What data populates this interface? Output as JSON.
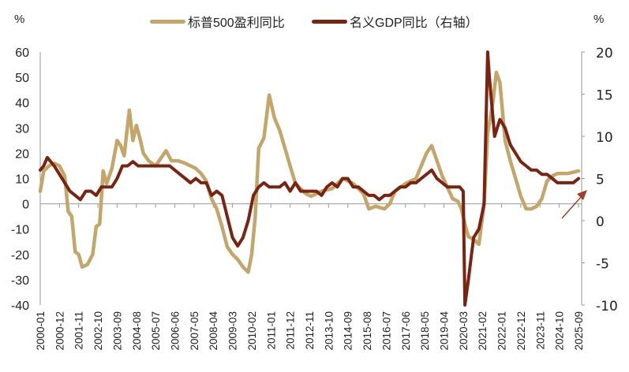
{
  "chart_data": {
    "type": "line",
    "title": "",
    "left_axis": {
      "unit_label": "%",
      "ylim": [
        -40,
        60
      ],
      "ticks": [
        60,
        50,
        40,
        30,
        20,
        10,
        0,
        -10,
        -20,
        -30,
        -40
      ]
    },
    "right_axis": {
      "unit_label": "%",
      "ylim": [
        -10,
        20
      ],
      "ticks": [
        20,
        15,
        10,
        5,
        0,
        -5,
        -10
      ]
    },
    "x_tick_labels": [
      "2000-01",
      "2000-12",
      "2001-11",
      "2002-10",
      "2003-09",
      "2004-08",
      "2005-07",
      "2006-06",
      "2007-05",
      "2008-04",
      "2009-03",
      "2010-02",
      "2011-01",
      "2011-12",
      "2012-11",
      "2013-10",
      "2014-09",
      "2015-08",
      "2016-07",
      "2017-06",
      "2018-05",
      "2019-04",
      "2020-03",
      "2021-02",
      "2022-01",
      "2022-12",
      "2023-11",
      "2024-10",
      "2025-09"
    ],
    "grid": false,
    "legend_position": "top",
    "annotations": [
      {
        "type": "arrow",
        "color": "#a0402a",
        "description": "upward arrow near latest nominal GDP value"
      }
    ],
    "series": [
      {
        "name": "标普500盈利同比",
        "axis": "left",
        "color": "#c4a56a",
        "points": [
          [
            "2000-01",
            5
          ],
          [
            "2000-03",
            13
          ],
          [
            "2000-06",
            15
          ],
          [
            "2000-09",
            16
          ],
          [
            "2000-12",
            15
          ],
          [
            "2001-03",
            11
          ],
          [
            "2001-05",
            -3
          ],
          [
            "2001-07",
            -5
          ],
          [
            "2001-09",
            -19
          ],
          [
            "2001-11",
            -20
          ],
          [
            "2002-01",
            -25
          ],
          [
            "2002-04",
            -24
          ],
          [
            "2002-07",
            -20
          ],
          [
            "2002-09",
            -9
          ],
          [
            "2002-11",
            -8
          ],
          [
            "2003-01",
            13
          ],
          [
            "2003-03",
            8
          ],
          [
            "2003-06",
            14
          ],
          [
            "2003-09",
            25
          ],
          [
            "2003-11",
            23
          ],
          [
            "2004-01",
            19
          ],
          [
            "2004-04",
            37
          ],
          [
            "2004-06",
            25
          ],
          [
            "2004-08",
            31
          ],
          [
            "2004-10",
            26
          ],
          [
            "2004-12",
            20
          ],
          [
            "2005-03",
            17
          ],
          [
            "2005-07",
            15
          ],
          [
            "2005-10",
            18
          ],
          [
            "2006-01",
            21
          ],
          [
            "2006-04",
            17
          ],
          [
            "2006-08",
            17
          ],
          [
            "2006-12",
            16
          ],
          [
            "2007-03",
            15
          ],
          [
            "2007-06",
            14
          ],
          [
            "2007-09",
            12
          ],
          [
            "2007-12",
            9
          ],
          [
            "2008-03",
            2
          ],
          [
            "2008-06",
            -2
          ],
          [
            "2008-09",
            -9
          ],
          [
            "2008-12",
            -17
          ],
          [
            "2009-03",
            -20
          ],
          [
            "2009-06",
            -22
          ],
          [
            "2009-09",
            -25
          ],
          [
            "2009-12",
            -27
          ],
          [
            "2010-02",
            -20
          ],
          [
            "2010-04",
            -5
          ],
          [
            "2010-06",
            22
          ],
          [
            "2010-09",
            26
          ],
          [
            "2010-12",
            43
          ],
          [
            "2011-03",
            34
          ],
          [
            "2011-06",
            29
          ],
          [
            "2011-09",
            22
          ],
          [
            "2011-12",
            15
          ],
          [
            "2012-03",
            8
          ],
          [
            "2012-06",
            6
          ],
          [
            "2012-09",
            4
          ],
          [
            "2012-12",
            3
          ],
          [
            "2013-06",
            5
          ],
          [
            "2013-12",
            6
          ],
          [
            "2014-06",
            10
          ],
          [
            "2014-12",
            8
          ],
          [
            "2015-06",
            4
          ],
          [
            "2015-09",
            -2
          ],
          [
            "2016-01",
            -1
          ],
          [
            "2016-06",
            -2
          ],
          [
            "2016-09",
            0
          ],
          [
            "2016-12",
            5
          ],
          [
            "2017-06",
            8
          ],
          [
            "2017-12",
            10
          ],
          [
            "2018-06",
            20
          ],
          [
            "2018-09",
            23
          ],
          [
            "2018-12",
            17
          ],
          [
            "2019-03",
            11
          ],
          [
            "2019-09",
            2
          ],
          [
            "2019-12",
            1
          ],
          [
            "2020-02",
            -2
          ],
          [
            "2020-04",
            -8
          ],
          [
            "2020-06",
            -13
          ],
          [
            "2020-09",
            -14
          ],
          [
            "2020-12",
            -16
          ],
          [
            "2021-03",
            0
          ],
          [
            "2021-05",
            28
          ],
          [
            "2021-08",
            40
          ],
          [
            "2021-10",
            52
          ],
          [
            "2021-12",
            48
          ],
          [
            "2022-03",
            25
          ],
          [
            "2022-06",
            17
          ],
          [
            "2022-09",
            10
          ],
          [
            "2022-12",
            3
          ],
          [
            "2023-03",
            -2
          ],
          [
            "2023-06",
            -2
          ],
          [
            "2023-09",
            -1
          ],
          [
            "2023-12",
            2
          ],
          [
            "2024-03",
            9
          ],
          [
            "2024-06",
            11
          ],
          [
            "2024-09",
            12
          ],
          [
            "2024-12",
            12
          ],
          [
            "2025-03",
            12
          ],
          [
            "2025-09",
            13
          ]
        ]
      },
      {
        "name": "名义GDP同比（右轴）",
        "axis": "right",
        "color": "#7a2310",
        "points": [
          [
            "2000-01",
            6
          ],
          [
            "2000-03",
            6.5
          ],
          [
            "2000-05",
            7.5
          ],
          [
            "2000-07",
            7
          ],
          [
            "2000-09",
            6.5
          ],
          [
            "2000-12",
            5.5
          ],
          [
            "2001-03",
            4.5
          ],
          [
            "2001-06",
            3.5
          ],
          [
            "2001-09",
            3
          ],
          [
            "2001-12",
            2.5
          ],
          [
            "2002-03",
            3.5
          ],
          [
            "2002-06",
            3.5
          ],
          [
            "2002-09",
            3
          ],
          [
            "2002-12",
            4
          ],
          [
            "2003-03",
            4
          ],
          [
            "2003-06",
            4
          ],
          [
            "2003-09",
            5
          ],
          [
            "2003-12",
            6.5
          ],
          [
            "2004-03",
            6.5
          ],
          [
            "2004-06",
            7
          ],
          [
            "2004-09",
            6.5
          ],
          [
            "2004-12",
            6.5
          ],
          [
            "2005-03",
            6.5
          ],
          [
            "2005-06",
            6.5
          ],
          [
            "2005-09",
            6.5
          ],
          [
            "2005-12",
            6.5
          ],
          [
            "2006-03",
            6.5
          ],
          [
            "2006-06",
            6
          ],
          [
            "2006-09",
            5.5
          ],
          [
            "2006-12",
            5
          ],
          [
            "2007-03",
            4.5
          ],
          [
            "2007-06",
            5
          ],
          [
            "2007-09",
            4.5
          ],
          [
            "2007-12",
            4.5
          ],
          [
            "2008-03",
            3
          ],
          [
            "2008-06",
            3.5
          ],
          [
            "2008-09",
            3
          ],
          [
            "2008-12",
            0.5
          ],
          [
            "2009-03",
            -2
          ],
          [
            "2009-06",
            -3
          ],
          [
            "2009-09",
            -2
          ],
          [
            "2009-12",
            0
          ],
          [
            "2010-03",
            3
          ],
          [
            "2010-06",
            4
          ],
          [
            "2010-09",
            4.5
          ],
          [
            "2010-12",
            4
          ],
          [
            "2011-03",
            4
          ],
          [
            "2011-06",
            4
          ],
          [
            "2011-09",
            4.5
          ],
          [
            "2011-12",
            3.5
          ],
          [
            "2012-03",
            4.5
          ],
          [
            "2012-06",
            3.5
          ],
          [
            "2012-09",
            3.5
          ],
          [
            "2012-12",
            3.5
          ],
          [
            "2013-03",
            3.5
          ],
          [
            "2013-06",
            3
          ],
          [
            "2013-09",
            4
          ],
          [
            "2013-12",
            4.5
          ],
          [
            "2014-03",
            4
          ],
          [
            "2014-06",
            5
          ],
          [
            "2014-09",
            5
          ],
          [
            "2014-12",
            4
          ],
          [
            "2015-03",
            4
          ],
          [
            "2015-06",
            3.5
          ],
          [
            "2015-09",
            3
          ],
          [
            "2015-12",
            3
          ],
          [
            "2016-03",
            2.5
          ],
          [
            "2016-06",
            3
          ],
          [
            "2016-09",
            3
          ],
          [
            "2016-12",
            3.5
          ],
          [
            "2017-03",
            4
          ],
          [
            "2017-06",
            4
          ],
          [
            "2017-09",
            4.5
          ],
          [
            "2017-12",
            4.5
          ],
          [
            "2018-03",
            5
          ],
          [
            "2018-06",
            5.5
          ],
          [
            "2018-09",
            6
          ],
          [
            "2018-12",
            5
          ],
          [
            "2019-03",
            4.5
          ],
          [
            "2019-06",
            4
          ],
          [
            "2019-09",
            4
          ],
          [
            "2019-12",
            4
          ],
          [
            "2020-01",
            4
          ],
          [
            "2020-03",
            3.5
          ],
          [
            "2020-04",
            -10
          ],
          [
            "2020-06",
            -7
          ],
          [
            "2020-09",
            -2
          ],
          [
            "2020-12",
            -1
          ],
          [
            "2021-03",
            2
          ],
          [
            "2021-05",
            20
          ],
          [
            "2021-06",
            17
          ],
          [
            "2021-09",
            10
          ],
          [
            "2021-12",
            12
          ],
          [
            "2022-03",
            11
          ],
          [
            "2022-06",
            9
          ],
          [
            "2022-09",
            8
          ],
          [
            "2022-12",
            7
          ],
          [
            "2023-03",
            6.5
          ],
          [
            "2023-06",
            6
          ],
          [
            "2023-09",
            6
          ],
          [
            "2023-12",
            5.5
          ],
          [
            "2024-03",
            5.5
          ],
          [
            "2024-06",
            5
          ],
          [
            "2024-09",
            4.5
          ],
          [
            "2024-12",
            4.5
          ],
          [
            "2025-03",
            4.5
          ],
          [
            "2025-06",
            4.5
          ],
          [
            "2025-09",
            5
          ]
        ]
      }
    ]
  },
  "legend": {
    "items": [
      {
        "label": "标普500盈利同比",
        "color": "#c4a56a"
      },
      {
        "label": "名义GDP同比（右轴）",
        "color": "#7a2310"
      }
    ]
  },
  "axes": {
    "left_unit": "%",
    "right_unit": "%"
  }
}
